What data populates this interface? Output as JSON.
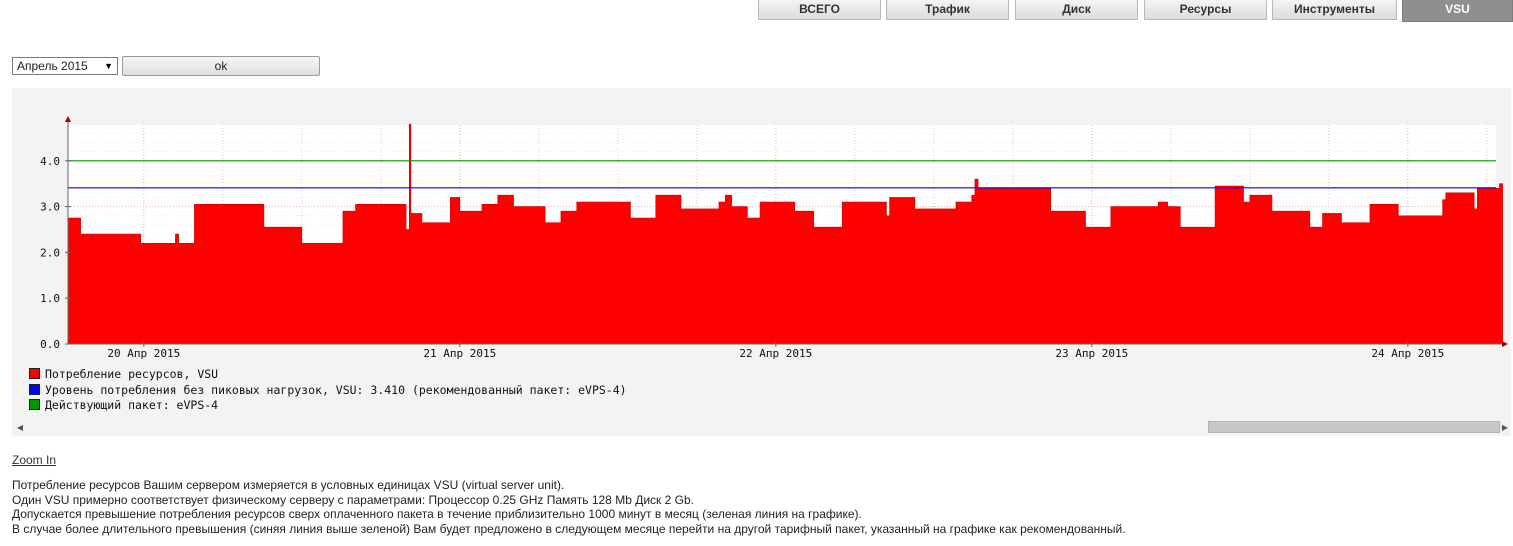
{
  "tabs": [
    {
      "label": "ВСЕГО",
      "active": false
    },
    {
      "label": "Трафик",
      "active": false
    },
    {
      "label": "Диск",
      "active": false
    },
    {
      "label": "Ресурсы",
      "active": false
    },
    {
      "label": "Инструменты",
      "active": false
    },
    {
      "label": "VSU",
      "active": true
    }
  ],
  "controls": {
    "month_value": "Апрель 2015",
    "ok_label": "ok"
  },
  "chart_data": {
    "type": "area",
    "ylim": [
      0,
      4.8
    ],
    "yticks": [
      "0.0",
      "1.0",
      "2.0",
      "3.0",
      "4.0"
    ],
    "xtick_labels": [
      "20 Апр 2015",
      "21 Апр 2015",
      "22 Апр 2015",
      "23 Апр 2015",
      "24 Апр 2015"
    ],
    "x_day_range": [
      19.76,
      24.3
    ],
    "series": [
      {
        "name": "Потребление ресурсов, VSU",
        "color": "#ff0000",
        "points": [
          [
            19.76,
            2.75
          ],
          [
            19.8,
            2.4
          ],
          [
            19.98,
            2.4
          ],
          [
            19.99,
            2.2
          ],
          [
            20.09,
            2.2
          ],
          [
            20.1,
            2.4
          ],
          [
            20.11,
            2.2
          ],
          [
            20.15,
            2.2
          ],
          [
            20.16,
            3.05
          ],
          [
            20.37,
            3.05
          ],
          [
            20.38,
            2.55
          ],
          [
            20.49,
            2.55
          ],
          [
            20.5,
            2.2
          ],
          [
            20.61,
            2.2
          ],
          [
            20.63,
            2.9
          ],
          [
            20.67,
            3.05
          ],
          [
            20.82,
            3.05
          ],
          [
            20.83,
            2.5
          ],
          [
            20.84,
            4.8
          ],
          [
            20.845,
            2.85
          ],
          [
            20.88,
            2.65
          ],
          [
            20.96,
            2.65
          ],
          [
            20.97,
            3.2
          ],
          [
            21.0,
            2.9
          ],
          [
            21.06,
            2.9
          ],
          [
            21.07,
            3.05
          ],
          [
            21.11,
            3.05
          ],
          [
            21.12,
            3.25
          ],
          [
            21.16,
            3.25
          ],
          [
            21.17,
            3.0
          ],
          [
            21.26,
            3.0
          ],
          [
            21.27,
            2.65
          ],
          [
            21.31,
            2.65
          ],
          [
            21.32,
            2.9
          ],
          [
            21.36,
            2.9
          ],
          [
            21.37,
            3.1
          ],
          [
            21.53,
            3.1
          ],
          [
            21.54,
            2.75
          ],
          [
            21.61,
            2.75
          ],
          [
            21.62,
            3.25
          ],
          [
            21.69,
            3.25
          ],
          [
            21.7,
            2.95
          ],
          [
            21.81,
            2.95
          ],
          [
            21.82,
            3.1
          ],
          [
            21.84,
            3.25
          ],
          [
            21.86,
            3.0
          ],
          [
            21.9,
            3.0
          ],
          [
            21.91,
            2.75
          ],
          [
            21.94,
            2.75
          ],
          [
            21.95,
            3.1
          ],
          [
            22.05,
            3.1
          ],
          [
            22.06,
            2.9
          ],
          [
            22.11,
            2.9
          ],
          [
            22.12,
            2.55
          ],
          [
            22.2,
            2.55
          ],
          [
            22.21,
            3.1
          ],
          [
            22.34,
            3.1
          ],
          [
            22.35,
            2.8
          ],
          [
            22.36,
            3.2
          ],
          [
            22.43,
            3.2
          ],
          [
            22.44,
            2.95
          ],
          [
            22.56,
            2.95
          ],
          [
            22.57,
            3.1
          ],
          [
            22.61,
            3.1
          ],
          [
            22.62,
            3.25
          ],
          [
            22.63,
            3.6
          ],
          [
            22.64,
            3.4
          ],
          [
            22.86,
            3.4
          ],
          [
            22.87,
            2.9
          ],
          [
            22.97,
            2.9
          ],
          [
            22.98,
            2.55
          ],
          [
            23.05,
            2.55
          ],
          [
            23.06,
            3.0
          ],
          [
            23.2,
            3.0
          ],
          [
            23.21,
            3.1
          ],
          [
            23.24,
            3.0
          ],
          [
            23.27,
            3.0
          ],
          [
            23.28,
            2.55
          ],
          [
            23.38,
            2.55
          ],
          [
            23.39,
            3.45
          ],
          [
            23.47,
            3.45
          ],
          [
            23.48,
            3.1
          ],
          [
            23.5,
            3.25
          ],
          [
            23.56,
            3.25
          ],
          [
            23.57,
            2.9
          ],
          [
            23.68,
            2.9
          ],
          [
            23.69,
            2.55
          ],
          [
            23.72,
            2.55
          ],
          [
            23.73,
            2.85
          ],
          [
            23.78,
            2.85
          ],
          [
            23.79,
            2.65
          ],
          [
            23.87,
            2.65
          ],
          [
            23.88,
            3.05
          ],
          [
            23.96,
            3.05
          ],
          [
            23.97,
            2.8
          ],
          [
            24.1,
            2.8
          ],
          [
            24.11,
            3.15
          ],
          [
            24.12,
            3.3
          ],
          [
            24.2,
            3.3
          ],
          [
            24.21,
            2.95
          ],
          [
            24.22,
            3.4
          ],
          [
            24.28,
            3.4
          ],
          [
            24.29,
            3.5
          ],
          [
            24.3,
            3.4
          ]
        ]
      },
      {
        "name": "Уровень потребления без пиковых нагрузок, VSU: 3.410 (рекомендованный пакет: eVPS-4)",
        "color": "#0000ff",
        "value": 3.41
      },
      {
        "name": "Действующий пакет: eVPS-4",
        "color": "#009900",
        "value": 4.0
      }
    ]
  },
  "zoom_label": "Zoom In",
  "description": [
    "Потребление ресурсов Вашим сервером измеряется в условных единицах VSU (virtual server unit).",
    "Один VSU примерно соответствует физическому серверу с параметрами: Процессор 0.25 GHz Память 128 Mb Диск 2 Gb.",
    "Допускается превышение потребления ресурсов сверх оплаченного пакета в течение приблизительно 1000 минут в месяц (зеленая линия на графике).",
    "В случае более длительного превышения (синяя линия выше зеленой) Вам будет предложено в следующем месяце перейти на другой тарифный пакет, указанный на графике как рекомендованный."
  ]
}
